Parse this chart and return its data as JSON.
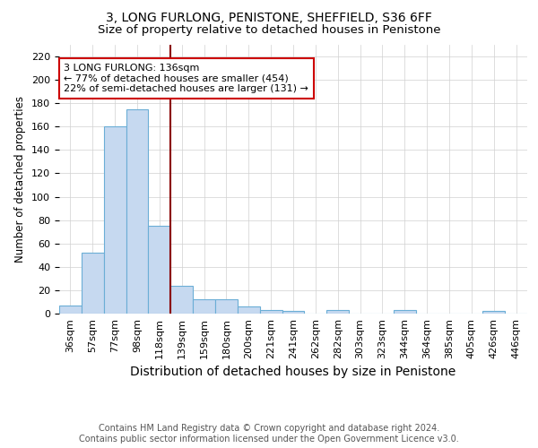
{
  "title": "3, LONG FURLONG, PENISTONE, SHEFFIELD, S36 6FF",
  "subtitle": "Size of property relative to detached houses in Penistone",
  "xlabel": "Distribution of detached houses by size in Penistone",
  "ylabel": "Number of detached properties",
  "categories": [
    "36sqm",
    "57sqm",
    "77sqm",
    "98sqm",
    "118sqm",
    "139sqm",
    "159sqm",
    "180sqm",
    "200sqm",
    "221sqm",
    "241sqm",
    "262sqm",
    "282sqm",
    "303sqm",
    "323sqm",
    "344sqm",
    "364sqm",
    "385sqm",
    "405sqm",
    "426sqm",
    "446sqm"
  ],
  "values": [
    7,
    52,
    160,
    175,
    75,
    24,
    12,
    12,
    6,
    3,
    2,
    0,
    3,
    0,
    0,
    3,
    0,
    0,
    0,
    2,
    0
  ],
  "bar_color": "#c6d9f0",
  "bar_edge_color": "#6baed6",
  "marker_bin_index": 5,
  "marker_color": "#8b0000",
  "annotation_line1": "3 LONG FURLONG: 136sqm",
  "annotation_line2": "← 77% of detached houses are smaller (454)",
  "annotation_line3": "22% of semi-detached houses are larger (131) →",
  "annotation_box_color": "white",
  "annotation_box_edge_color": "#cc0000",
  "footer_line1": "Contains HM Land Registry data © Crown copyright and database right 2024.",
  "footer_line2": "Contains public sector information licensed under the Open Government Licence v3.0.",
  "ylim": [
    0,
    230
  ],
  "yticks": [
    0,
    20,
    40,
    60,
    80,
    100,
    120,
    140,
    160,
    180,
    200,
    220
  ],
  "title_fontsize": 10,
  "subtitle_fontsize": 9.5,
  "xlabel_fontsize": 10,
  "ylabel_fontsize": 8.5,
  "tick_fontsize": 8,
  "annotation_fontsize": 8,
  "footer_fontsize": 7,
  "background_color": "#ffffff"
}
